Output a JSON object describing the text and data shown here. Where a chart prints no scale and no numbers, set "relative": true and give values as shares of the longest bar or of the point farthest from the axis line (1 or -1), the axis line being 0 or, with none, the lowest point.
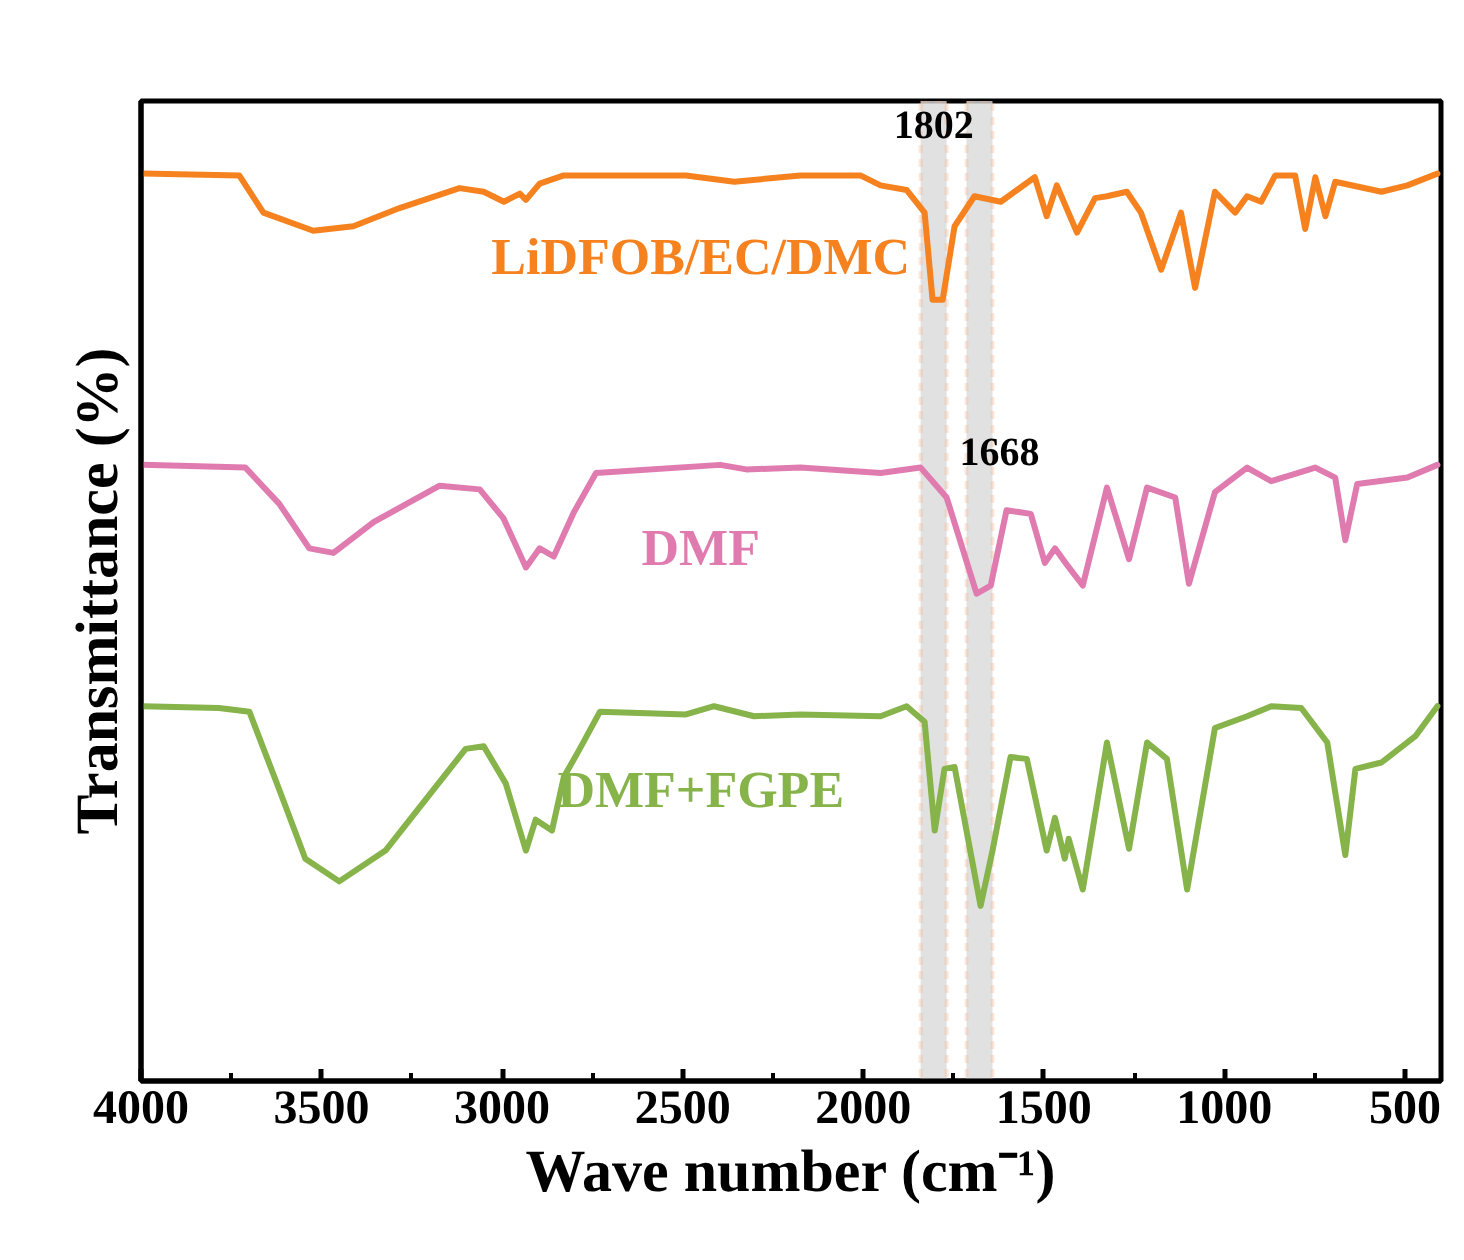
{
  "chart_data": {
    "type": "line",
    "relative": true,
    "xlabel": "Wave number (cm⁻¹)",
    "ylabel": "Transmittance (%)",
    "xlim": [
      4000,
      400
    ],
    "xticks": [
      4000,
      3500,
      3000,
      2500,
      2000,
      1500,
      1000,
      500
    ],
    "grid": false,
    "legend": false,
    "line_style": "solid",
    "marker": "none",
    "bands": [
      {
        "axis": "x",
        "from": 1841,
        "to": 1769,
        "label": "1802",
        "color": "#d9d9d9"
      },
      {
        "axis": "x",
        "from": 1714,
        "to": 1642,
        "label": "1668",
        "color": "#d9d9d9"
      }
    ],
    "series": [
      {
        "name": "LiDFOB/EC/DMC",
        "color": "#f5821f",
        "x": [
          3995,
          3728,
          3661,
          3523,
          3412,
          3284,
          3118,
          3051,
          2995,
          2951,
          2934,
          2896,
          2829,
          2491,
          2357,
          2174,
          2008,
          1952,
          1880,
          1830,
          1808,
          1780,
          1747,
          1692,
          1619,
          1525,
          1492,
          1464,
          1408,
          1358,
          1325,
          1270,
          1231,
          1175,
          1120,
          1081,
          1026,
          970,
          937,
          898,
          859,
          804,
          776,
          748,
          720,
          693,
          565,
          493,
          410
        ],
        "values": [
          1.0,
          0.998,
          0.957,
          0.937,
          0.942,
          0.962,
          0.984,
          0.98,
          0.969,
          0.978,
          0.971,
          0.989,
          0.998,
          0.998,
          0.991,
          0.998,
          0.998,
          0.987,
          0.982,
          0.957,
          0.861,
          0.861,
          0.942,
          0.975,
          0.969,
          0.996,
          0.953,
          0.987,
          0.935,
          0.973,
          0.975,
          0.98,
          0.957,
          0.894,
          0.957,
          0.874,
          0.98,
          0.957,
          0.975,
          0.969,
          0.998,
          0.998,
          0.939,
          0.996,
          0.953,
          0.991,
          0.98,
          0.987,
          1.0
        ]
      },
      {
        "name": "DMF",
        "color": "#e07bb0",
        "x": [
          3995,
          3711,
          3617,
          3534,
          3467,
          3356,
          3173,
          3062,
          2996,
          2934,
          2896,
          2857,
          2801,
          2740,
          2396,
          2324,
          2174,
          1952,
          1841,
          1769,
          1686,
          1647,
          1603,
          1536,
          1497,
          1469,
          1436,
          1392,
          1325,
          1264,
          1214,
          1136,
          1098,
          1026,
          937,
          870,
          748,
          693,
          665,
          632,
          493,
          410
        ],
        "values": [
          0.679,
          0.676,
          0.636,
          0.587,
          0.582,
          0.616,
          0.656,
          0.652,
          0.62,
          0.566,
          0.587,
          0.578,
          0.627,
          0.67,
          0.679,
          0.674,
          0.676,
          0.67,
          0.676,
          0.643,
          0.537,
          0.546,
          0.629,
          0.625,
          0.571,
          0.587,
          0.569,
          0.546,
          0.654,
          0.575,
          0.654,
          0.643,
          0.548,
          0.649,
          0.676,
          0.661,
          0.676,
          0.665,
          0.596,
          0.658,
          0.665,
          0.679
        ]
      },
      {
        "name": "DMF+FGPE",
        "color": "#86b34a",
        "x": [
          3995,
          3784,
          3700,
          3617,
          3545,
          3451,
          3323,
          3190,
          3101,
          3051,
          2990,
          2934,
          2907,
          2862,
          2829,
          2785,
          2729,
          2491,
          2413,
          2302,
          2174,
          1952,
          1880,
          1830,
          1802,
          1775,
          1747,
          1675,
          1642,
          1592,
          1547,
          1492,
          1469,
          1442,
          1431,
          1392,
          1325,
          1264,
          1214,
          1159,
          1103,
          1026,
          937,
          870,
          787,
          715,
          665,
          637,
          565,
          471,
          410
        ],
        "values": [
          0.413,
          0.411,
          0.407,
          0.321,
          0.245,
          0.22,
          0.254,
          0.321,
          0.366,
          0.369,
          0.328,
          0.254,
          0.288,
          0.276,
          0.335,
          0.366,
          0.407,
          0.404,
          0.413,
          0.402,
          0.404,
          0.402,
          0.413,
          0.396,
          0.276,
          0.344,
          0.346,
          0.193,
          0.254,
          0.357,
          0.355,
          0.254,
          0.29,
          0.245,
          0.267,
          0.211,
          0.373,
          0.256,
          0.373,
          0.355,
          0.211,
          0.389,
          0.402,
          0.413,
          0.411,
          0.373,
          0.249,
          0.344,
          0.351,
          0.38,
          0.413
        ]
      }
    ]
  }
}
